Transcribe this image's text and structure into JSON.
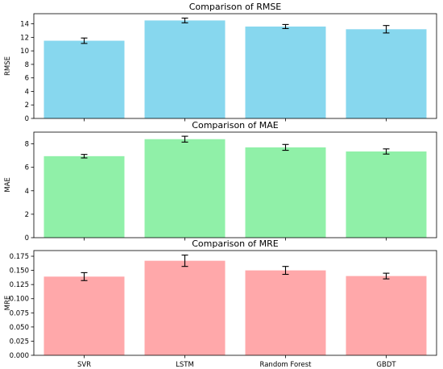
{
  "chart_data": [
    {
      "type": "bar",
      "title": "Comparison of RMSE",
      "ylabel": "RMSE",
      "xlabel": "",
      "categories": [
        "SVR",
        "LSTM",
        "Random Forest",
        "GBDT"
      ],
      "values": [
        11.5,
        14.5,
        13.6,
        13.2
      ],
      "errors": [
        0.4,
        0.35,
        0.3,
        0.55
      ],
      "ylim": [
        0,
        15.5
      ],
      "yticks": [
        0,
        2,
        4,
        6,
        8,
        10,
        12,
        14
      ],
      "tick_labels": [
        "0",
        "2",
        "4",
        "6",
        "8",
        "10",
        "12",
        "14"
      ],
      "color": "#87d7ee",
      "show_xtick_labels": false
    },
    {
      "type": "bar",
      "title": "Comparison of MAE",
      "ylabel": "MAE",
      "xlabel": "",
      "categories": [
        "SVR",
        "LSTM",
        "Random Forest",
        "GBDT"
      ],
      "values": [
        6.95,
        8.4,
        7.7,
        7.35
      ],
      "errors": [
        0.15,
        0.25,
        0.25,
        0.22
      ],
      "ylim": [
        0,
        9.0
      ],
      "yticks": [
        0,
        2,
        4,
        6,
        8
      ],
      "tick_labels": [
        "0",
        "2",
        "4",
        "6",
        "8"
      ],
      "color": "#90f0a8",
      "show_xtick_labels": false
    },
    {
      "type": "bar",
      "title": "Comparison of MRE",
      "ylabel": "MRE",
      "xlabel": "",
      "categories": [
        "SVR",
        "LSTM",
        "Random Forest",
        "GBDT"
      ],
      "values": [
        0.139,
        0.167,
        0.15,
        0.14
      ],
      "errors": [
        0.007,
        0.01,
        0.007,
        0.005
      ],
      "ylim": [
        0,
        0.185
      ],
      "yticks": [
        0,
        0.025,
        0.05,
        0.075,
        0.1,
        0.125,
        0.15,
        0.175
      ],
      "tick_labels": [
        "0.000",
        "0.025",
        "0.050",
        "0.075",
        "0.100",
        "0.125",
        "0.150",
        "0.175"
      ],
      "color": "#ffa8aa",
      "show_xtick_labels": true
    }
  ]
}
